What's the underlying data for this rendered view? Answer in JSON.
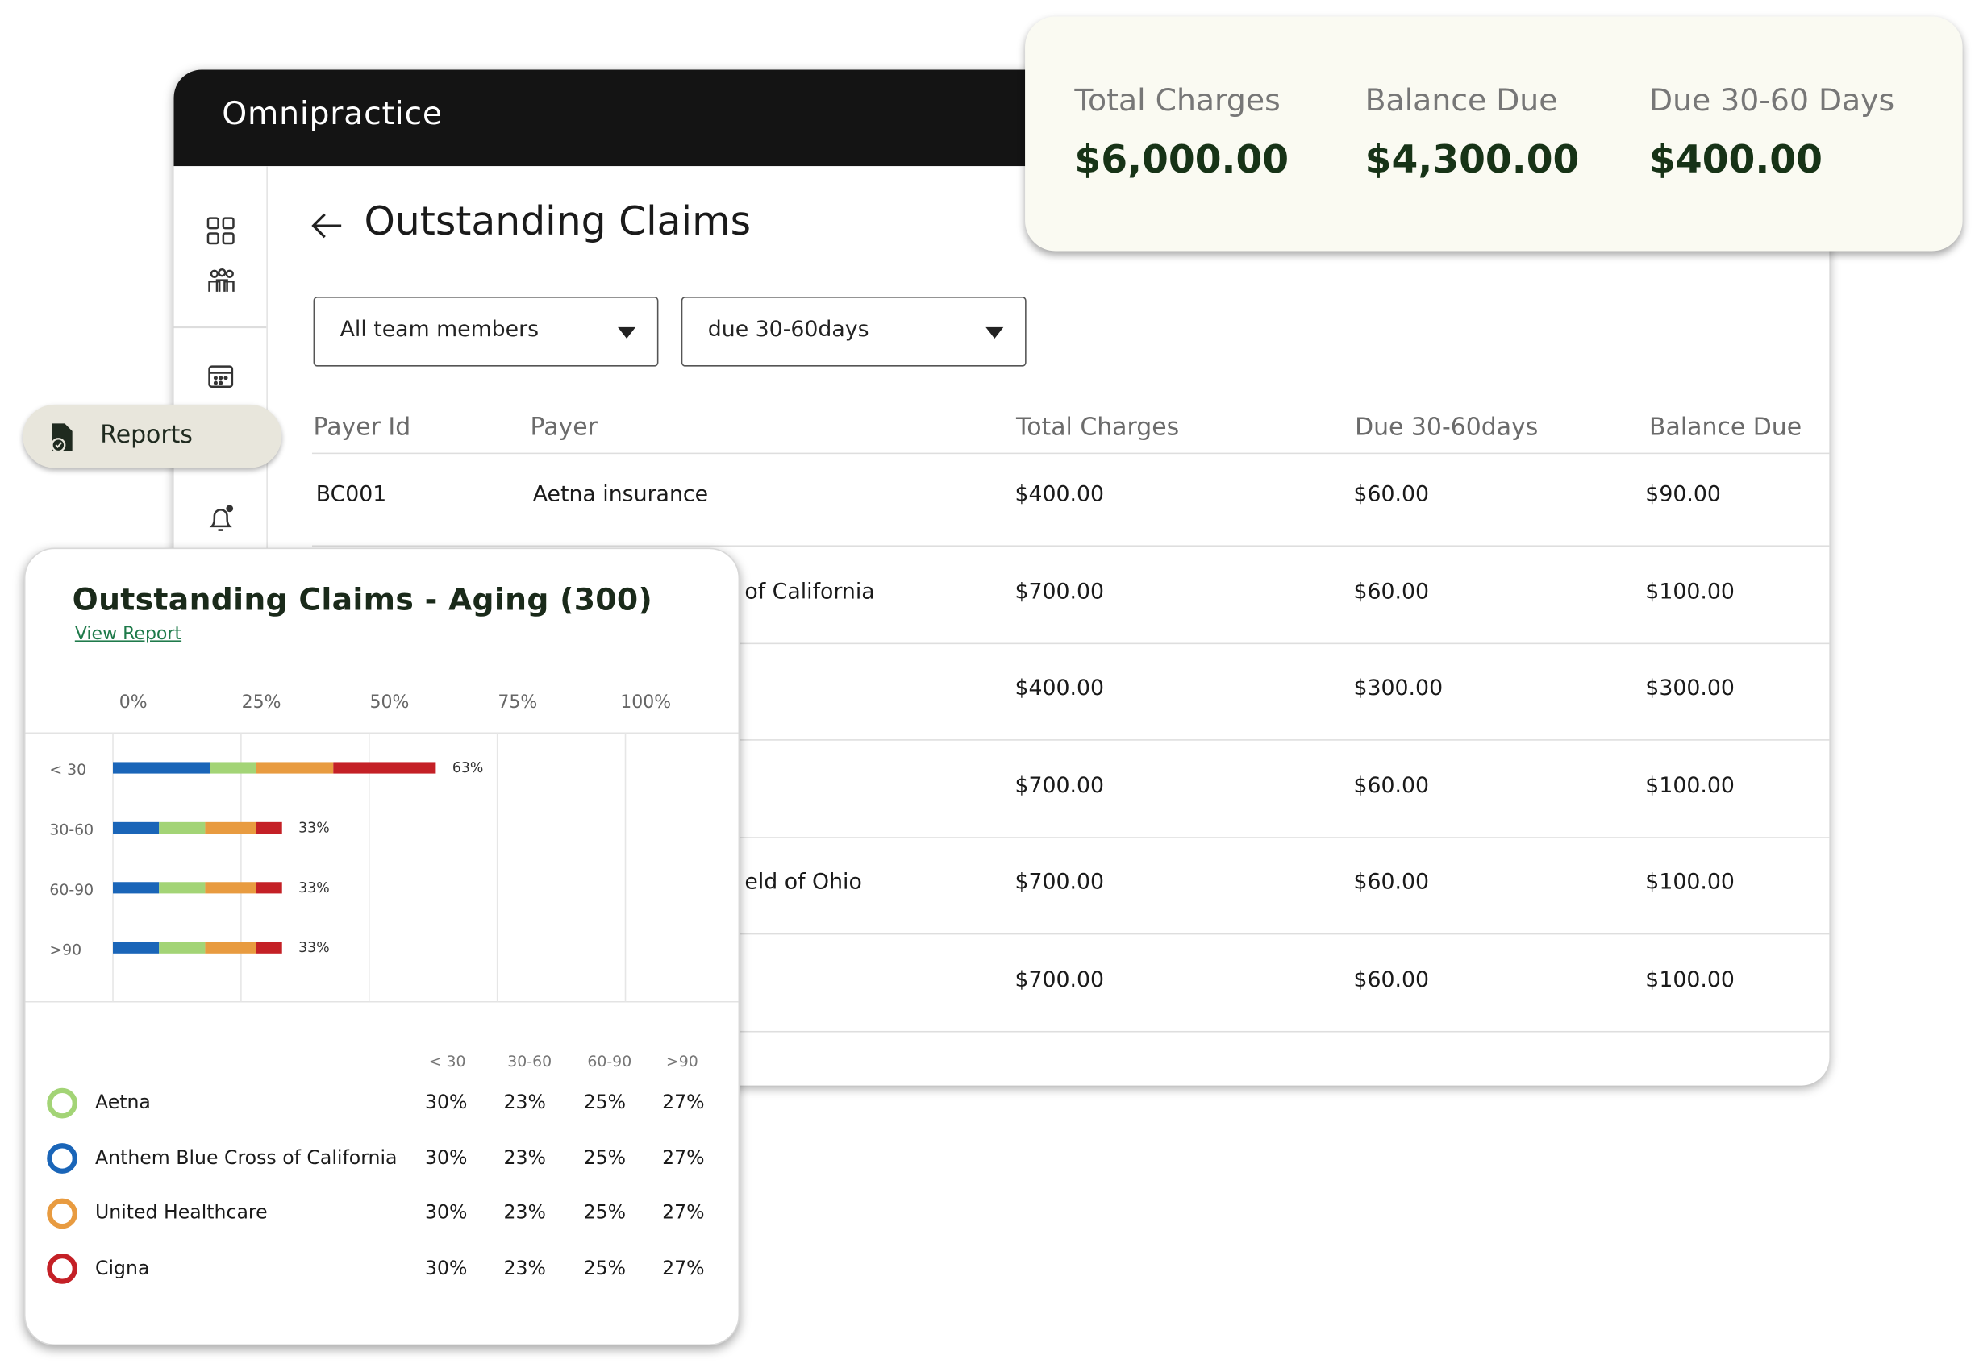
{
  "header": {
    "brand": "Omnipractice"
  },
  "summary": [
    {
      "label": "Total Charges",
      "value": "$6,000.00"
    },
    {
      "label": "Balance Due",
      "value": "$4,300.00"
    },
    {
      "label": "Due 30-60 Days",
      "value": "$400.00"
    }
  ],
  "sidebar": {
    "active": "Reports"
  },
  "page": {
    "title": "Outstanding Claims",
    "filters": [
      "All team members",
      "due 30-60days"
    ]
  },
  "table": {
    "columns": [
      "Payer Id",
      "Payer",
      "Total Charges",
      "Due 30-60days",
      "Balance Due"
    ],
    "rows": [
      {
        "payer_id": "BC001",
        "payer": "Aetna insurance",
        "total": "$400.00",
        "due": "$60.00",
        "balance": "$90.00"
      },
      {
        "payer": "of California",
        "total": "$700.00",
        "due": "$60.00",
        "balance": "$100.00"
      },
      {
        "total": "$400.00",
        "due": "$300.00",
        "balance": "$300.00"
      },
      {
        "total": "$700.00",
        "due": "$60.00",
        "balance": "$100.00"
      },
      {
        "payer": "eld of Ohio",
        "total": "$700.00",
        "due": "$60.00",
        "balance": "$100.00"
      },
      {
        "total": "$700.00",
        "due": "$60.00",
        "balance": "$100.00"
      }
    ]
  },
  "aging": {
    "title": "Outstanding Claims - Aging  (300)",
    "link": "View Report",
    "chart_data": {
      "type": "bar",
      "orientation": "horizontal",
      "stacked": true,
      "categories": [
        "< 30",
        "30-60",
        "60-90",
        ">90"
      ],
      "series": [
        {
          "color": "#1a65b8",
          "values": [
            19,
            9,
            9,
            9
          ]
        },
        {
          "color": "#a3d476",
          "values": [
            9,
            9,
            9,
            9
          ]
        },
        {
          "color": "#e89b40",
          "values": [
            15,
            10,
            10,
            10
          ]
        },
        {
          "color": "#c42026",
          "values": [
            20,
            5,
            5,
            5
          ]
        }
      ],
      "totals": [
        63,
        33,
        33,
        33
      ],
      "total_labels": [
        "63%",
        "33%",
        "33%",
        "33%"
      ],
      "xlim": [
        0,
        100
      ],
      "xticks": [
        {
          "value": 0,
          "label": "0%"
        },
        {
          "value": 25,
          "label": "25%"
        },
        {
          "value": 50,
          "label": "50%"
        },
        {
          "value": 75,
          "label": "75%"
        },
        {
          "value": 100,
          "label": "100%"
        }
      ],
      "grid": true
    },
    "legend": {
      "columns": [
        "< 30",
        "30-60",
        "60-90",
        ">90"
      ],
      "rows": [
        {
          "name": "Aetna",
          "color": "#a3d476",
          "values": [
            "30%",
            "23%",
            "25%",
            "27%"
          ]
        },
        {
          "name": "Anthem Blue Cross of California",
          "color": "#1a65b8",
          "values": [
            "30%",
            "23%",
            "25%",
            "27%"
          ]
        },
        {
          "name": "United Healthcare",
          "color": "#e89b40",
          "values": [
            "30%",
            "23%",
            "25%",
            "27%"
          ]
        },
        {
          "name": "Cigna",
          "color": "#c42026",
          "values": [
            "30%",
            "23%",
            "25%",
            "27%"
          ]
        }
      ]
    }
  }
}
